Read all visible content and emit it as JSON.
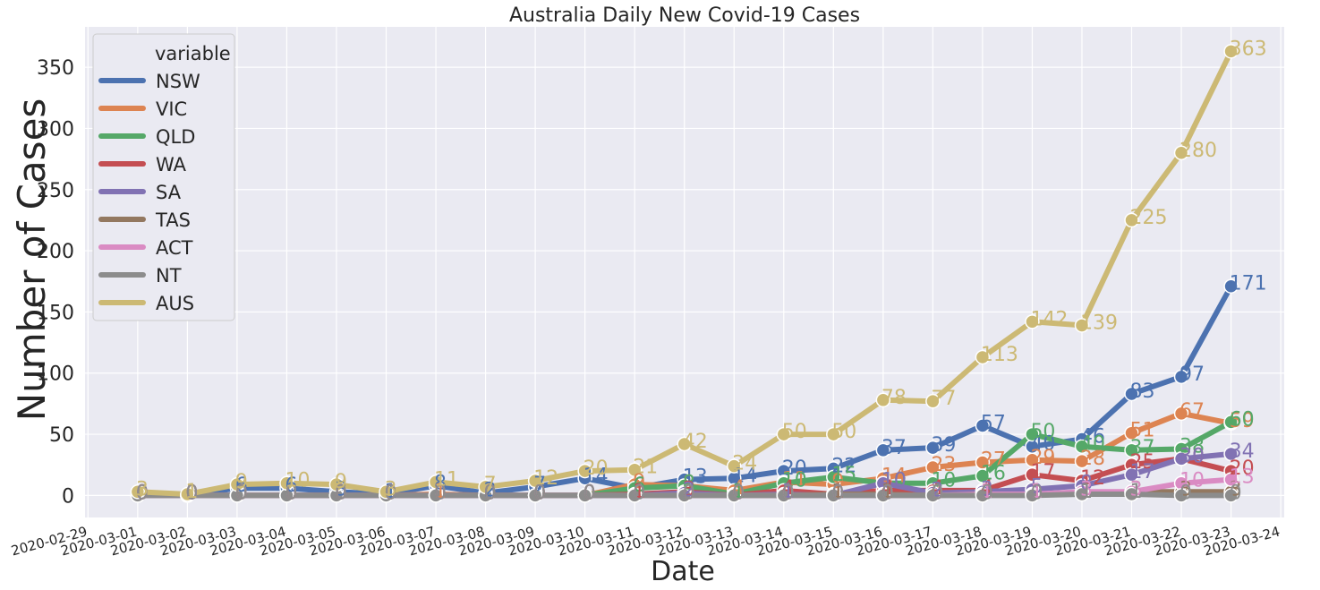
{
  "chart_data": {
    "type": "line",
    "title": "Australia Daily New Covid-19 Cases",
    "xlabel": "Date",
    "ylabel": "Number of Cases",
    "x": [
      "2020-03-01",
      "2020-03-02",
      "2020-03-03",
      "2020-03-04",
      "2020-03-05",
      "2020-03-06",
      "2020-03-07",
      "2020-03-08",
      "2020-03-09",
      "2020-03-10",
      "2020-03-11",
      "2020-03-12",
      "2020-03-13",
      "2020-03-14",
      "2020-03-15",
      "2020-03-16",
      "2020-03-17",
      "2020-03-18",
      "2020-03-19",
      "2020-03-20",
      "2020-03-21",
      "2020-03-22",
      "2020-03-23"
    ],
    "x_ticks": [
      "2020-02-29",
      "2020-03-01",
      "2020-03-02",
      "2020-03-03",
      "2020-03-04",
      "2020-03-05",
      "2020-03-06",
      "2020-03-07",
      "2020-03-08",
      "2020-03-09",
      "2020-03-10",
      "2020-03-11",
      "2020-03-12",
      "2020-03-13",
      "2020-03-14",
      "2020-03-15",
      "2020-03-16",
      "2020-03-17",
      "2020-03-18",
      "2020-03-19",
      "2020-03-20",
      "2020-03-21",
      "2020-03-22",
      "2020-03-23",
      "2020-03-24"
    ],
    "xlim": [
      "2020-02-29",
      "2020-03-24"
    ],
    "ylim": [
      -18,
      383
    ],
    "y_ticks": [
      0,
      50,
      100,
      150,
      200,
      250,
      300,
      350
    ],
    "grid": true,
    "legend": {
      "title": "variable",
      "placement": "top-left"
    },
    "series": [
      {
        "name": "NSW",
        "color": "#4c72b0",
        "values": [
          0,
          0,
          6,
          6,
          3,
          1,
          8,
          2,
          7,
          14,
          6,
          13,
          14,
          20,
          22,
          37,
          39,
          57,
          40,
          46,
          83,
          97,
          171
        ]
      },
      {
        "name": "VIC",
        "color": "#dd8452",
        "values": [
          0,
          0,
          0,
          0,
          0,
          0,
          1,
          0,
          0,
          0,
          9,
          8,
          4,
          11,
          9,
          14,
          23,
          27,
          29,
          28,
          51,
          67,
          59
        ]
      },
      {
        "name": "QLD",
        "color": "#55a868",
        "values": [
          0,
          0,
          0,
          0,
          0,
          0,
          0,
          0,
          0,
          0,
          6,
          8,
          1,
          10,
          15,
          10,
          10,
          16,
          50,
          40,
          37,
          38,
          60
        ]
      },
      {
        "name": "WA",
        "color": "#c44e52",
        "values": [
          0,
          0,
          0,
          0,
          0,
          0,
          0,
          0,
          0,
          0,
          1,
          3,
          0,
          4,
          1,
          4,
          4,
          4,
          17,
          12,
          25,
          30,
          20
        ]
      },
      {
        "name": "SA",
        "color": "#8172b3",
        "values": [
          0,
          0,
          0,
          0,
          0,
          0,
          0,
          0,
          0,
          0,
          0,
          2,
          0,
          1,
          0,
          10,
          2,
          3,
          5,
          8,
          17,
          30,
          34
        ]
      },
      {
        "name": "TAS",
        "color": "#937860",
        "values": [
          0,
          0,
          0,
          0,
          0,
          0,
          0,
          0,
          0,
          0,
          0,
          0,
          0,
          0,
          1,
          1,
          0,
          1,
          1,
          1,
          3,
          3,
          3
        ]
      },
      {
        "name": "ACT",
        "color": "#da8bc3",
        "values": [
          0,
          0,
          0,
          0,
          0,
          0,
          0,
          0,
          0,
          0,
          0,
          0,
          0,
          0,
          0,
          0,
          0,
          1,
          1,
          3,
          3,
          10,
          13
        ]
      },
      {
        "name": "NT",
        "color": "#8c8c8c",
        "values": [
          0,
          0,
          0,
          0,
          0,
          0,
          0,
          0,
          0,
          0,
          0,
          0,
          0,
          0,
          0,
          0,
          0,
          0,
          0,
          1,
          1,
          0,
          0
        ]
      },
      {
        "name": "AUS",
        "color": "#ccb974",
        "values": [
          3,
          1,
          9,
          10,
          9,
          3,
          11,
          7,
          12,
          20,
          21,
          42,
          24,
          50,
          50,
          78,
          77,
          113,
          142,
          139,
          225,
          280,
          363
        ]
      }
    ]
  }
}
